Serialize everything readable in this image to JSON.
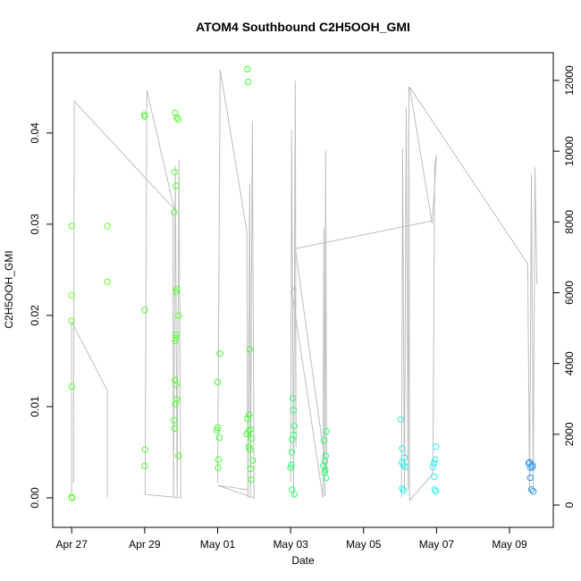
{
  "chart_data": {
    "type": "scatter",
    "title": "ATOM4 Southbound C2H5OOH_GMI",
    "x_label": "Date",
    "y_label": "C2H5OOH_GMI",
    "xlim": [
      -0.52,
      13.2
    ],
    "xticks": [
      {
        "value": 0,
        "label": "Apr 27"
      },
      {
        "value": 2,
        "label": "Apr 29"
      },
      {
        "value": 4,
        "label": "May 01"
      },
      {
        "value": 6,
        "label": "May 03"
      },
      {
        "value": 8,
        "label": "May 05"
      },
      {
        "value": 10,
        "label": "May 07"
      },
      {
        "value": 12,
        "label": "May 09"
      }
    ],
    "ylim": [
      -0.00324,
      0.0488
    ],
    "yticks": [
      {
        "value": 0,
        "label": "0.00"
      },
      {
        "value": 0.01,
        "label": "0.01"
      },
      {
        "value": 0.02,
        "label": "0.02"
      },
      {
        "value": 0.03,
        "label": "0.03"
      },
      {
        "value": 0.04,
        "label": "0.04"
      }
    ],
    "y2lim": [
      -631,
      12782
    ],
    "y2ticks": [
      0,
      2000,
      4000,
      6000,
      8000,
      10000,
      12000
    ],
    "series": [
      {
        "type": "line",
        "axis": "y2",
        "color": "#bebebe",
        "x": [
          0,
          0,
          0.98,
          0.98,
          null,
          0.05,
          0.07,
          2.77,
          2.79,
          2.84,
          2.89,
          2.94,
          2.99,
          2.01,
          2.06,
          2.82,
          null,
          4.0,
          4.07,
          4.8,
          4.83,
          4.88,
          4.9,
          4.95,
          5.0,
          4.0,
          4.85,
          null,
          6.0,
          6.03,
          6.08,
          6.13,
          6.15,
          6.13,
          6.03,
          6.89,
          6.91,
          6.94,
          6.96,
          6.99,
          6.13,
          9.88,
          null,
          9.04,
          9.07,
          9.12,
          9.17,
          9.22,
          9.24,
          9.26,
          9.9,
          9.95,
          10.0,
          9.88,
          9.26,
          12.5,
          12.55,
          12.6,
          12.65,
          12.7,
          12.75
        ],
        "values": [
          202,
          5176,
          3232,
          202,
          null,
          631,
          11413,
          8408,
          202,
          9595,
          202,
          9772,
          202,
          303,
          11716,
          8333,
          null,
          631,
          12297,
          7752,
          202,
          9090,
          202,
          10858,
          202,
          556,
          429,
          null,
          631,
          10605,
          253,
          11994,
          1641,
          6186,
          6060,
          202,
          7828,
          253,
          10024,
          884,
          7247,
          8030,
          null,
          202,
          10100,
          379,
          11236,
          429,
          11817,
          126,
          884,
          9595,
          9898,
          7954,
          11817,
          6818,
          379,
          9343,
          429,
          9545,
          6237
        ]
      },
      {
        "color": "#66ff33",
        "x": [
          0,
          0,
          0,
          0,
          0,
          0.01,
          0.98,
          0.98
        ],
        "values": [
          0.0298,
          0.0222,
          0.0194,
          0.0122,
          0.0001,
          0,
          0.0298,
          0.0237
        ]
      },
      {
        "color": "#55ff33",
        "x": [
          1.99,
          2.0,
          2.0,
          2.01,
          2.0,
          2.84,
          2.88,
          2.92,
          2.82,
          2.86,
          2.81,
          2.88,
          2.86,
          2.93,
          2.86,
          2.85,
          2.84,
          2.83,
          2.86,
          2.88,
          2.84,
          2.8,
          2.82,
          2.93
        ],
        "values": [
          0.042,
          0.0418,
          0.0206,
          0.0053,
          0.0035,
          0.0422,
          0.0417,
          0.0415,
          0.0357,
          0.0342,
          0.0313,
          0.0229,
          0.0226,
          0.02,
          0.0179,
          0.0175,
          0.0172,
          0.0129,
          0.0124,
          0.0108,
          0.0103,
          0.0085,
          0.0076,
          0.0046
        ]
      },
      {
        "color": "#44ff33",
        "x": [
          4.06,
          4.0,
          4.0,
          3.98,
          4.05,
          4.02,
          4.01,
          4.82,
          4.84,
          4.88,
          4.86,
          4.82,
          4.9,
          4.85,
          4.8,
          4.93,
          4.86,
          4.88,
          4.96,
          4.9,
          4.92
        ],
        "values": [
          0.0158,
          0.0127,
          0.0077,
          0.0074,
          0.0066,
          0.0042,
          0.0033,
          0.047,
          0.0456,
          0.0163,
          0.0091,
          0.0087,
          0.0075,
          0.0073,
          0.007,
          0.0065,
          0.0056,
          0.0053,
          0.0041,
          0.0032,
          0.002
        ]
      },
      {
        "color": "#33ff77",
        "x": [
          6.06,
          6.08,
          6.1,
          6.08,
          6.04,
          6.03,
          6.02,
          6.0,
          6.04,
          6.1,
          6.98,
          6.92,
          6.96,
          6.94,
          6.9,
          6.95,
          6.93,
          6.97
        ],
        "values": [
          0.0109,
          0.0096,
          0.0079,
          0.0069,
          0.0064,
          0.005,
          0.0036,
          0.0033,
          0.0009,
          0.0004,
          0.0073,
          0.0063,
          0.0046,
          0.004,
          0.0035,
          0.0031,
          0.0028,
          0.0022
        ]
      },
      {
        "color": "#33eeee",
        "x": [
          9.02,
          9.06,
          9.12,
          9.05,
          9.09,
          9.14,
          9.06,
          9.1,
          9.98,
          9.96,
          9.93,
          9.9,
          9.94,
          9.95,
          9.98
        ],
        "values": [
          0.0086,
          0.0054,
          0.0044,
          0.0039,
          0.0036,
          0.0034,
          0.001,
          0.0008,
          0.0056,
          0.0042,
          0.0038,
          0.0034,
          0.0023,
          0.0009,
          0.0007
        ]
      },
      {
        "color": "#3399ee",
        "x": [
          12.55,
          12.62,
          12.58,
          12.57,
          12.6,
          12.65,
          12.52,
          12.63
        ],
        "values": [
          0.0039,
          0.0036,
          0.0033,
          0.0022,
          0.0009,
          0.0007,
          0.0038,
          0.0034
        ]
      }
    ]
  }
}
